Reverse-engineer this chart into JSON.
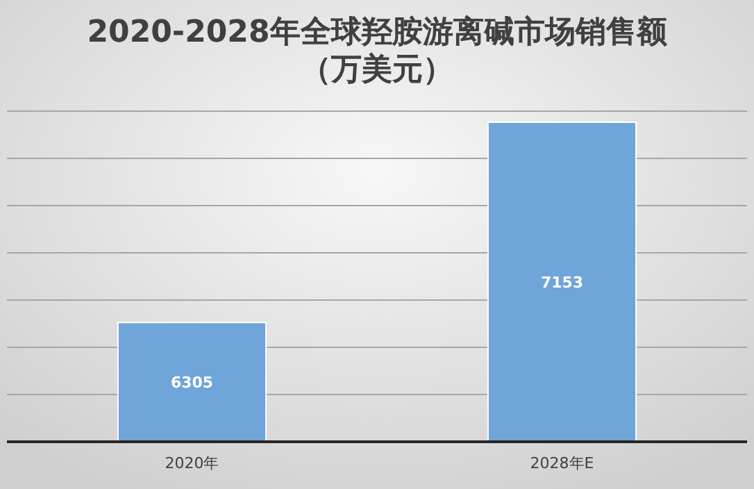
{
  "chart_data": {
    "type": "bar",
    "title": "2020-2028年全球羟胺游离碱市场销售额",
    "subtitle": "（万美元）",
    "categories": [
      "2020年",
      "2028年E"
    ],
    "values": [
      6305,
      7153
    ],
    "color": "#6fa5d8",
    "ylim": [
      5800,
      7200
    ],
    "yticks": [
      {
        "value": 5800,
        "label": null
      },
      {
        "value": 6000,
        "label": null
      },
      {
        "value": 6200,
        "label": null
      },
      {
        "value": 6400,
        "label": null
      },
      {
        "value": 6600,
        "label": null
      },
      {
        "value": 6800,
        "label": null
      },
      {
        "value": 7000,
        "label": null
      },
      {
        "value": 7200,
        "label": null
      }
    ],
    "tick_labels": "x",
    "grid": "y",
    "data_labels": true
  }
}
